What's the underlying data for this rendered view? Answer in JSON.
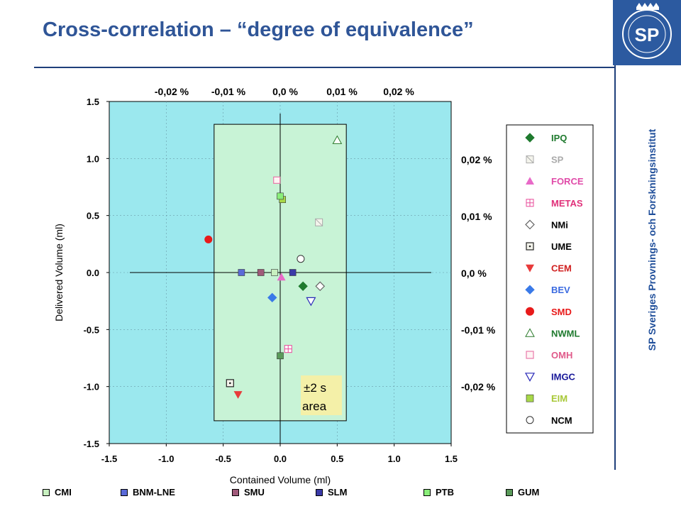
{
  "slide": {
    "title": "Cross-correlation – “degree of equivalence”",
    "side_text": "SP Sveriges Provnings- och Forskningsinstitut",
    "logo_text": "SP"
  },
  "chart_data": {
    "type": "scatter",
    "xlabel": "Contained Volume (ml)",
    "ylabel": "Delivered Volume (ml)",
    "xlim": [
      -1.5,
      1.5
    ],
    "ylim": [
      -1.5,
      1.5
    ],
    "x_ticks": [
      "-1.5",
      "-1.0",
      "-0.5",
      "0.0",
      "0.5",
      "1.0",
      "1.5"
    ],
    "y_ticks": [
      "1.5",
      "1.0",
      "0.5",
      "0.0",
      "-0.5",
      "-1.0",
      "-1.5"
    ],
    "top_ticks": [
      "-0,02 %",
      "-0,01 %",
      "0,0 %",
      "0,01 %",
      "0,02 %"
    ],
    "right_ticks": [
      "0,02 %",
      "0,01 %",
      "0,0 %",
      "-0,01 %",
      "-0,02 %"
    ],
    "annotation": "±2 s area",
    "box": {
      "x": [
        -0.58,
        0.58
      ],
      "y": [
        -1.3,
        1.3
      ]
    },
    "background_color": "#9be8ee",
    "box_color": "#c8f3d6",
    "series": [
      {
        "name": "IPQ",
        "marker": "diamond-filled",
        "color": "#1f7a2e",
        "label_color": "#1f7a2e",
        "x": [
          0.2
        ],
        "y": [
          -0.12
        ]
      },
      {
        "name": "SP",
        "marker": "square-hatched",
        "color": "#aaaaaa",
        "label_color": "#aaaaaa",
        "x": [
          0.34
        ],
        "y": [
          0.44
        ]
      },
      {
        "name": "FORCE",
        "marker": "triangle-up-filled",
        "color": "#e86ac8",
        "label_color": "#e04aa8",
        "x": [
          0.01
        ],
        "y": [
          -0.04
        ]
      },
      {
        "name": "METAS",
        "marker": "square-cross",
        "color": "#e84a9a",
        "label_color": "#e0307a",
        "x": [
          0.07
        ],
        "y": [
          -0.67
        ]
      },
      {
        "name": "NMi",
        "marker": "diamond-open",
        "color": "#666666",
        "label_color": "#000000",
        "x": [
          0.35
        ],
        "y": [
          -0.12
        ]
      },
      {
        "name": "UME",
        "marker": "square-dot",
        "color": "#222222",
        "label_color": "#000000",
        "x": [
          -0.44
        ],
        "y": [
          -0.97
        ]
      },
      {
        "name": "CEM",
        "marker": "triangle-down-filled",
        "color": "#e83a3a",
        "label_color": "#d02020",
        "x": [
          -0.37
        ],
        "y": [
          -1.07
        ]
      },
      {
        "name": "BEV",
        "marker": "diamond-filled",
        "color": "#3a7ae8",
        "label_color": "#3a6ae0",
        "x": [
          -0.07
        ],
        "y": [
          -0.22
        ]
      },
      {
        "name": "SMD",
        "marker": "circle-filled",
        "color": "#e81a1a",
        "label_color": "#e81a1a",
        "x": [
          -0.63
        ],
        "y": [
          0.29
        ]
      },
      {
        "name": "NWML",
        "marker": "triangle-up-open",
        "color": "#2a7a2a",
        "label_color": "#1f7a2e",
        "x": [
          0.5
        ],
        "y": [
          1.16
        ]
      },
      {
        "name": "OMH",
        "marker": "square-open",
        "color": "#e87aaa",
        "label_color": "#e05a8a",
        "x": [
          -0.03
        ],
        "y": [
          0.81
        ]
      },
      {
        "name": "IMGC",
        "marker": "triangle-down-open",
        "color": "#2a2ab8",
        "label_color": "#1a1a9a",
        "x": [
          0.27
        ],
        "y": [
          -0.25
        ]
      },
      {
        "name": "EIM",
        "marker": "square-filled",
        "color": "#a8d848",
        "label_color": "#a8c838",
        "x": [
          0.02
        ],
        "y": [
          0.64
        ]
      },
      {
        "name": "NCM",
        "marker": "circle-open",
        "color": "#333333",
        "label_color": "#000000",
        "x": [
          0.18
        ],
        "y": [
          0.12
        ]
      },
      {
        "name": "CMI",
        "marker": "square-filled",
        "color": "#c8f0c0",
        "x": [
          -0.05
        ],
        "y": [
          0.0
        ]
      },
      {
        "name": "BNM-LNE",
        "marker": "square-filled",
        "color": "#5a6ad8",
        "x": [
          -0.34
        ],
        "y": [
          0.0
        ]
      },
      {
        "name": "SMU",
        "marker": "square-filled",
        "color": "#a05a7a",
        "x": [
          -0.17
        ],
        "y": [
          0.0
        ]
      },
      {
        "name": "SLM",
        "marker": "square-filled",
        "color": "#3a3aa8",
        "x": [
          0.11
        ],
        "y": [
          0.0
        ]
      },
      {
        "name": "PTB",
        "marker": "square-filled",
        "color": "#8aee7a",
        "x": [
          0.0
        ],
        "y": [
          0.67
        ]
      },
      {
        "name": "GUM",
        "marker": "square-filled",
        "color": "#5a9a5a",
        "x": [
          0.0
        ],
        "y": [
          -0.73
        ]
      }
    ],
    "legend": [
      "IPQ",
      "SP",
      "FORCE",
      "METAS",
      "NMi",
      "UME",
      "CEM",
      "BEV",
      "SMD",
      "NWML",
      "OMH",
      "IMGC",
      "EIM",
      "NCM"
    ],
    "bottom_legend": [
      "CMI",
      "BNM-LNE",
      "SMU",
      "SLM",
      "PTB",
      "GUM"
    ],
    "legend_position": "right",
    "grid": true
  }
}
